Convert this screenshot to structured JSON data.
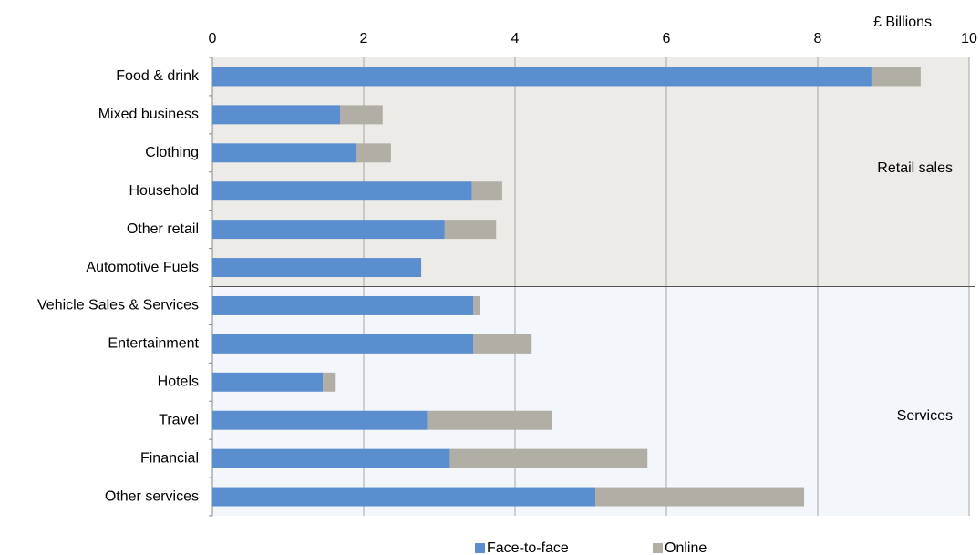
{
  "chart_data": {
    "type": "stacked_barh",
    "x_label": "£ Billions",
    "categories": [
      "Food & drink",
      "Mixed business",
      "Clothing",
      "Household",
      "Other retail",
      "Automotive Fuels",
      "Vehicle Sales & Services",
      "Entertainment",
      "Hotels",
      "Travel",
      "Financial",
      "Other services"
    ],
    "series": [
      {
        "name": "Face-to-face",
        "color": "#5b8ecf",
        "values": [
          8.71,
          1.69,
          1.9,
          3.43,
          3.07,
          2.76,
          3.45,
          3.45,
          1.46,
          2.84,
          3.14,
          5.06
        ]
      },
      {
        "name": "Online",
        "color": "#b1aea5",
        "values": [
          0.65,
          0.56,
          0.46,
          0.4,
          0.68,
          0,
          0.09,
          0.77,
          0.17,
          1.65,
          2.61,
          2.76
        ]
      }
    ],
    "sections": [
      "Retail sales",
      "Services"
    ],
    "xlim": [
      0,
      10
    ],
    "xticks": [
      0,
      2,
      4,
      6,
      8,
      10
    ],
    "grid": true,
    "legend": "bottom"
  }
}
